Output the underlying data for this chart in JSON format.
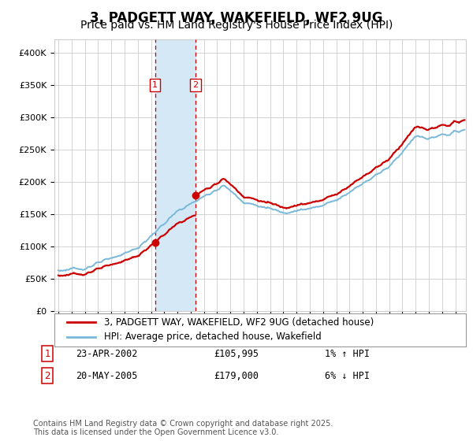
{
  "title": "3, PADGETT WAY, WAKEFIELD, WF2 9UG",
  "subtitle": "Price paid vs. HM Land Registry's House Price Index (HPI)",
  "ylim": [
    0,
    420000
  ],
  "yticks": [
    0,
    50000,
    100000,
    150000,
    200000,
    250000,
    300000,
    350000,
    400000
  ],
  "xlim_left": 1994.7,
  "xlim_right": 2025.8,
  "sale1_date": 2002.3,
  "sale1_price": 105995,
  "sale1_label": "1",
  "sale1_text": "23-APR-2002",
  "sale1_price_text": "£105,995",
  "sale1_hpi_text": "1% ↑ HPI",
  "sale2_date": 2005.37,
  "sale2_price": 179000,
  "sale2_label": "2",
  "sale2_text": "20-MAY-2005",
  "sale2_price_text": "£179,000",
  "sale2_hpi_text": "6% ↓ HPI",
  "legend_line1": "3, PADGETT WAY, WAKEFIELD, WF2 9UG (detached house)",
  "legend_line2": "HPI: Average price, detached house, Wakefield",
  "footer": "Contains HM Land Registry data © Crown copyright and database right 2025.\nThis data is licensed under the Open Government Licence v3.0.",
  "sale_line_color": "#cc0000",
  "hpi_line_color": "#7ab8d9",
  "shade_color": "#d4e8f5",
  "vline_color": "#cc0000",
  "background_color": "#ffffff",
  "grid_color": "#cccccc",
  "title_fontsize": 12,
  "subtitle_fontsize": 10,
  "tick_fontsize": 8,
  "legend_fontsize": 8.5,
  "footer_fontsize": 7
}
